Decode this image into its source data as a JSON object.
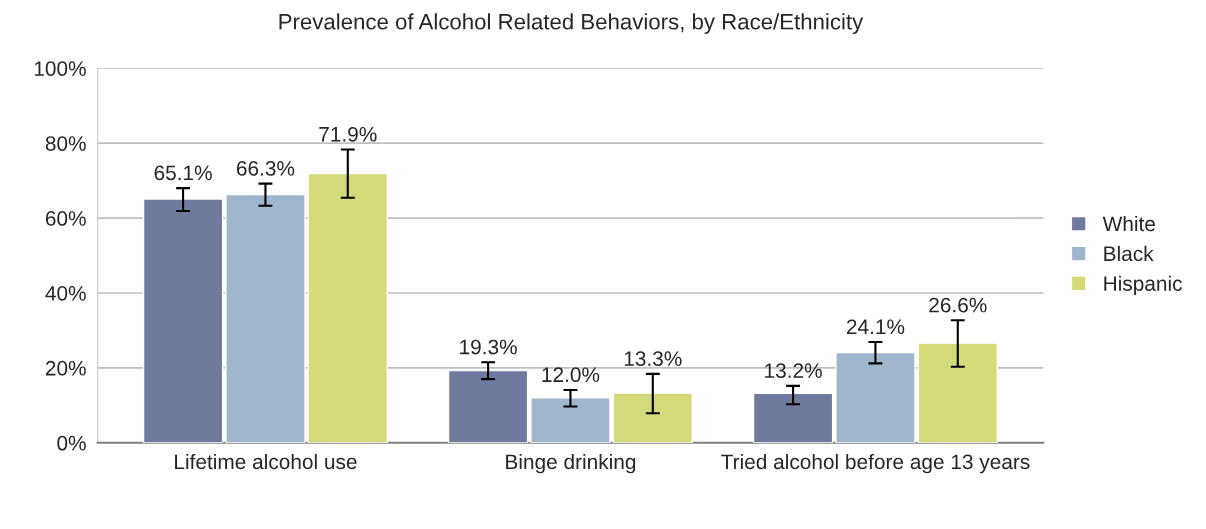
{
  "chart_data": {
    "type": "bar",
    "title": "Prevalence of Alcohol Related Behaviors, by Race/Ethnicity",
    "categories": [
      "Lifetime alcohol use",
      "Binge drinking",
      "Tried alcohol before age 13 years"
    ],
    "series": [
      {
        "name": "White",
        "color": "#6f7a9e",
        "values": [
          65.1,
          19.3,
          13.2
        ],
        "errors": [
          [
            61.9,
            68.0
          ],
          [
            17.0,
            21.5
          ],
          [
            10.3,
            15.2
          ]
        ]
      },
      {
        "name": "Black",
        "color": "#a0b6cd",
        "values": [
          66.3,
          12.0,
          24.1
        ],
        "errors": [
          [
            63.3,
            69.2
          ],
          [
            9.7,
            14.1
          ],
          [
            21.2,
            26.9
          ]
        ]
      },
      {
        "name": "Hispanic",
        "color": "#d4da7a",
        "values": [
          71.9,
          13.3,
          26.6
        ],
        "errors": [
          [
            65.4,
            78.3
          ],
          [
            7.9,
            18.4
          ],
          [
            20.3,
            32.7
          ]
        ]
      }
    ],
    "ylim": [
      0,
      100
    ],
    "yticks": [
      {
        "value": 0,
        "label": "0%"
      },
      {
        "value": 20,
        "label": "20%"
      },
      {
        "value": 40,
        "label": "40%"
      },
      {
        "value": 60,
        "label": "60%"
      },
      {
        "value": 80,
        "label": "80%"
      },
      {
        "value": 100,
        "label": "100%"
      }
    ],
    "value_labels": [
      [
        "65.1%",
        "19.3%",
        "13.2%"
      ],
      [
        "66.3%",
        "12.0%",
        "24.1%"
      ],
      [
        "71.9%",
        "13.3%",
        "26.6%"
      ]
    ],
    "grid": "y",
    "legend": "right"
  }
}
